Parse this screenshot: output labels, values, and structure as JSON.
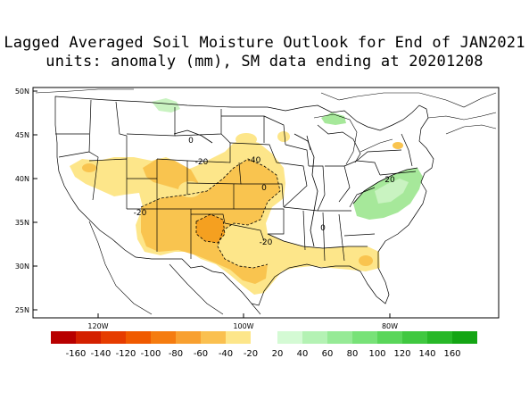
{
  "title_line1": "Lagged Averaged Soil Moisture Outlook for End of JAN2021",
  "title_line2": "units: anomaly (mm), SM data ending at 20201208",
  "lat_labels": [
    "50N",
    "45N",
    "40N",
    "35N",
    "30N",
    "25N"
  ],
  "lon_labels": [
    "120W",
    "100W",
    "80W"
  ],
  "contour_labels": [
    "-20",
    "-40",
    "0",
    "-20",
    "0",
    "20",
    "0",
    "-20"
  ],
  "legend": {
    "negative_labels": [
      "-160",
      "-140",
      "-120",
      "-100",
      "-80",
      "-60",
      "-40",
      "-20"
    ],
    "positive_labels": [
      "20",
      "40",
      "60",
      "80",
      "100",
      "120",
      "140",
      "160"
    ],
    "negative_colors": [
      "#b80000",
      "#d42000",
      "#e63c00",
      "#f05a00",
      "#f57c10",
      "#f8a030",
      "#fac050",
      "#fde68a"
    ],
    "positive_colors": [
      "#d4fad4",
      "#b4f2b4",
      "#96ea96",
      "#78e278",
      "#5ad65a",
      "#40c840",
      "#28b828",
      "#14a514"
    ]
  },
  "map_colors": {
    "dry_light": "#fde68a",
    "dry_mid": "#f9c44f",
    "dry_strong": "#f5a020",
    "wet_light": "#c9f3c1",
    "wet_mid": "#a6e89a"
  }
}
